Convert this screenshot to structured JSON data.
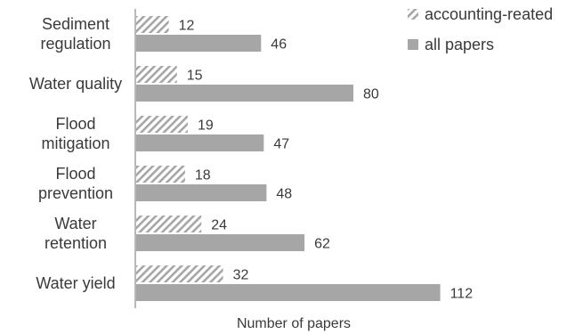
{
  "chart_data": {
    "type": "bar",
    "orientation": "horizontal",
    "categories": [
      [
        "Sediment",
        "regulation"
      ],
      [
        "Water quality"
      ],
      [
        "Flood",
        "mitigation"
      ],
      [
        "Flood",
        "prevention"
      ],
      [
        "Water",
        "retention"
      ],
      [
        "Water yield"
      ]
    ],
    "series": [
      {
        "name": "accounting-reated",
        "values": [
          12,
          15,
          19,
          18,
          24,
          32
        ],
        "color": "#ffffff",
        "pattern": "diagonal-hatch",
        "pattern_color": "#a6a6a6"
      },
      {
        "name": "all papers",
        "values": [
          46,
          80,
          47,
          48,
          62,
          112
        ],
        "color": "#a6a6a6"
      }
    ],
    "xlabel": "Number of papers",
    "ylabel": "",
    "title": "",
    "xlim": [
      0,
      130
    ],
    "grid": false,
    "legend": "top-right"
  }
}
